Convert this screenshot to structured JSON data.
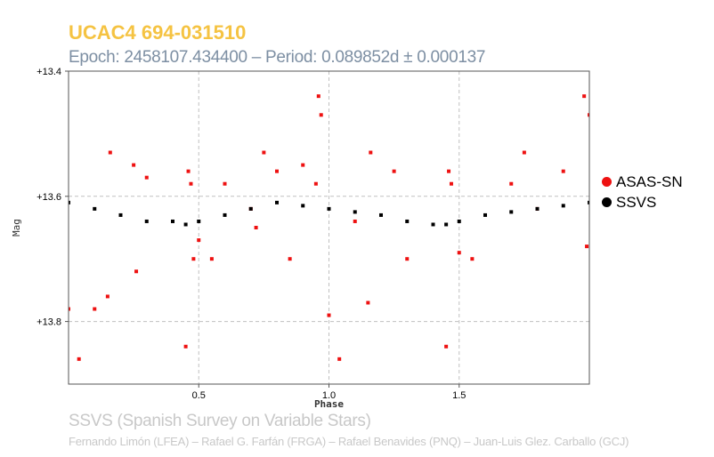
{
  "header": {
    "title": "UCAC4 694-031510",
    "subtitle": "Epoch: 2458107.434400 – Period: 0.089852d ± 0.000137"
  },
  "footer": {
    "survey": "SSVS (Spanish Survey on Variable Stars)",
    "credits": "Fernando Limón (LFEA) – Rafael G. Farfán (FRGA) – Rafael Benavides (PNQ) – Juan-Luis Glez. Carballo (GCJ)"
  },
  "colors": {
    "title": "#f5c342",
    "subtitle": "#7d8fa3",
    "footer": "#c8c8c8",
    "asas": "#ee1111",
    "ssvs": "#000000",
    "grid": "#c0c0c0"
  },
  "chart_data": {
    "type": "scatter",
    "title": "",
    "xlabel": "Phase",
    "ylabel": "Mag",
    "xlim": [
      0,
      2.0
    ],
    "ylim": [
      13.9,
      13.4
    ],
    "y_inverted": true,
    "x_ticks": [
      "0.5",
      "1.0",
      "1.5"
    ],
    "x_tick_values": [
      0.5,
      1.0,
      1.5
    ],
    "y_ticks": [
      "+13.4",
      "+13.6",
      "+13.8"
    ],
    "y_tick_values": [
      13.4,
      13.6,
      13.8
    ],
    "grid": true,
    "legend_position": "right",
    "series": [
      {
        "name": "ASAS-SN",
        "color": "#ee1111",
        "x": [
          0.0,
          0.04,
          0.1,
          0.15,
          0.16,
          0.25,
          0.26,
          0.3,
          0.45,
          0.46,
          0.47,
          0.48,
          0.5,
          0.55,
          0.6,
          0.7,
          0.72,
          0.75,
          0.8,
          0.85,
          0.9,
          0.95,
          0.96,
          0.97,
          1.0,
          1.04,
          1.1,
          1.15,
          1.16,
          1.25,
          1.3,
          1.45,
          1.46,
          1.47,
          1.5,
          1.55,
          1.7,
          1.75,
          1.8,
          1.9,
          1.98,
          2.0,
          1.99
        ],
        "y": [
          13.78,
          13.86,
          13.78,
          13.76,
          13.53,
          13.55,
          13.72,
          13.57,
          13.84,
          13.56,
          13.58,
          13.7,
          13.67,
          13.7,
          13.58,
          13.62,
          13.65,
          13.53,
          13.56,
          13.7,
          13.55,
          13.58,
          13.44,
          13.47,
          13.79,
          13.86,
          13.64,
          13.77,
          13.53,
          13.56,
          13.7,
          13.84,
          13.56,
          13.58,
          13.69,
          13.7,
          13.58,
          13.53,
          13.62,
          13.56,
          13.44,
          13.47,
          13.68
        ]
      },
      {
        "name": "SSVS",
        "color": "#000000",
        "x": [
          0.0,
          0.1,
          0.2,
          0.3,
          0.4,
          0.45,
          0.5,
          0.6,
          0.7,
          0.8,
          0.9,
          1.0,
          1.1,
          1.2,
          1.3,
          1.4,
          1.45,
          1.5,
          1.6,
          1.7,
          1.8,
          1.9,
          2.0
        ],
        "y": [
          13.61,
          13.62,
          13.63,
          13.64,
          13.64,
          13.645,
          13.64,
          13.63,
          13.62,
          13.61,
          13.615,
          13.62,
          13.625,
          13.63,
          13.64,
          13.645,
          13.645,
          13.64,
          13.63,
          13.625,
          13.62,
          13.615,
          13.61
        ]
      }
    ]
  }
}
